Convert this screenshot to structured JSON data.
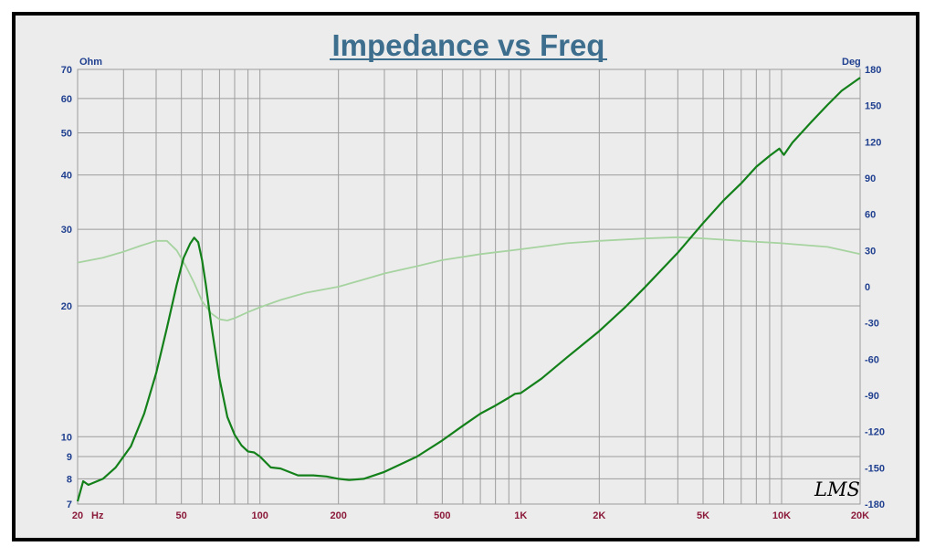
{
  "colors": {
    "background": "#ececec",
    "grid": "#9c9c9c",
    "impedance": "#13801a",
    "phase": "#a6d3a0",
    "title": "#3d6e8e",
    "left_axis": "#1f3f8f",
    "x_axis": "#8b1a3a"
  },
  "logo_text": "LMS",
  "chart_data": {
    "type": "line",
    "title": "Impedance vs Freq",
    "left_unit": "Ohm",
    "right_unit": "Deg",
    "x_unit": "Hz",
    "x_scale": "log",
    "y_left_scale": "log",
    "xlim": [
      20,
      20000
    ],
    "ylim_left": [
      7,
      70
    ],
    "ylim_right": [
      -180,
      180
    ],
    "grid": true,
    "x_tick_labels": [
      {
        "value": 20,
        "label": "20"
      },
      {
        "value": 50,
        "label": "50"
      },
      {
        "value": 100,
        "label": "100"
      },
      {
        "value": 200,
        "label": "200"
      },
      {
        "value": 500,
        "label": "500"
      },
      {
        "value": 1000,
        "label": "1K"
      },
      {
        "value": 2000,
        "label": "2K"
      },
      {
        "value": 5000,
        "label": "5K"
      },
      {
        "value": 10000,
        "label": "10K"
      },
      {
        "value": 20000,
        "label": "20K"
      }
    ],
    "left_tick_labels": [
      {
        "value": 70,
        "label": "70"
      },
      {
        "value": 60,
        "label": "60"
      },
      {
        "value": 50,
        "label": "50"
      },
      {
        "value": 40,
        "label": "40"
      },
      {
        "value": 30,
        "label": "30"
      },
      {
        "value": 20,
        "label": "20"
      },
      {
        "value": 10,
        "label": "10"
      },
      {
        "value": 9,
        "label": "9"
      },
      {
        "value": 8,
        "label": "8"
      },
      {
        "value": 7,
        "label": "7"
      }
    ],
    "right_tick_labels": [
      {
        "value": 180,
        "label": "180"
      },
      {
        "value": 150,
        "label": "150"
      },
      {
        "value": 120,
        "label": "120"
      },
      {
        "value": 90,
        "label": "90"
      },
      {
        "value": 60,
        "label": "60"
      },
      {
        "value": 30,
        "label": "30"
      },
      {
        "value": 0,
        "label": "0"
      },
      {
        "value": -30,
        "label": "-30"
      },
      {
        "value": -60,
        "label": "-60"
      },
      {
        "value": -90,
        "label": "-90"
      },
      {
        "value": -120,
        "label": "-120"
      },
      {
        "value": -150,
        "label": "-150"
      },
      {
        "value": -180,
        "label": "-180"
      }
    ],
    "series": [
      {
        "axis": "left",
        "style": "impedance",
        "x": [
          20,
          21,
          22,
          25,
          28,
          32,
          36,
          40,
          44,
          48,
          51,
          54,
          56,
          58,
          60,
          62,
          65,
          70,
          75,
          80,
          85,
          90,
          95,
          100,
          110,
          120,
          140,
          160,
          180,
          200,
          220,
          250,
          300,
          400,
          500,
          600,
          700,
          800,
          900,
          950,
          1000,
          1200,
          1500,
          2000,
          2500,
          3000,
          4000,
          5000,
          6000,
          7000,
          8000,
          9000,
          9800,
          10200,
          11000,
          13000,
          15000,
          17000,
          20000
        ],
        "values": [
          7.1,
          7.9,
          7.75,
          8.0,
          8.5,
          9.5,
          11.3,
          14.0,
          17.8,
          22.4,
          25.8,
          27.8,
          28.7,
          28.0,
          25.5,
          22.4,
          18.2,
          13.6,
          11.1,
          10.1,
          9.55,
          9.25,
          9.2,
          9.0,
          8.5,
          8.45,
          8.15,
          8.15,
          8.1,
          8.0,
          7.95,
          8.0,
          8.3,
          9.0,
          9.8,
          10.6,
          11.3,
          11.8,
          12.3,
          12.55,
          12.6,
          13.6,
          15.2,
          17.5,
          19.8,
          22.1,
          26.5,
          31.0,
          35.0,
          38.3,
          41.8,
          44.3,
          46.0,
          44.5,
          47.5,
          53.0,
          58.0,
          62.5,
          67.0
        ]
      },
      {
        "axis": "right",
        "style": "phase",
        "x": [
          20,
          25,
          30,
          35,
          40,
          44,
          48,
          52,
          56,
          60,
          65,
          70,
          75,
          80,
          90,
          100,
          120,
          150,
          200,
          250,
          300,
          400,
          500,
          700,
          1000,
          1500,
          2000,
          3000,
          4000,
          5000,
          7000,
          10000,
          15000,
          20000
        ],
        "values": [
          20,
          24,
          29,
          34,
          38,
          38,
          30,
          17,
          3,
          -12,
          -22,
          -27,
          -28,
          -26,
          -21,
          -17,
          -11,
          -5,
          0,
          6,
          11,
          17,
          22,
          27,
          31,
          36,
          38,
          40,
          41,
          40,
          38,
          36,
          33,
          27
        ]
      }
    ]
  }
}
